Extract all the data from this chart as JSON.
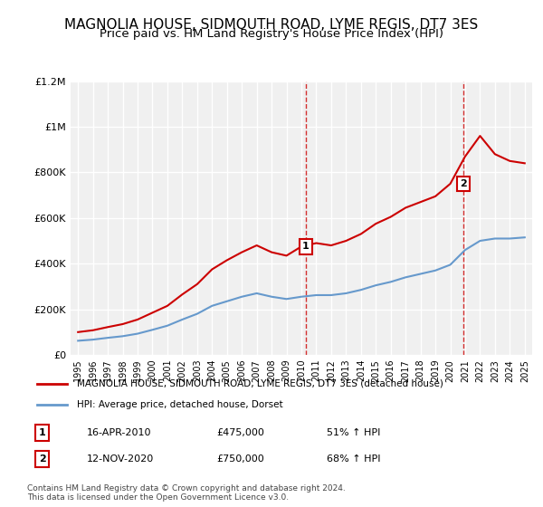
{
  "title": "MAGNOLIA HOUSE, SIDMOUTH ROAD, LYME REGIS, DT7 3ES",
  "subtitle": "Price paid vs. HM Land Registry's House Price Index (HPI)",
  "title_fontsize": 11,
  "subtitle_fontsize": 9.5,
  "hpi_years": [
    1995,
    1996,
    1997,
    1998,
    1999,
    2000,
    2001,
    2002,
    2003,
    2004,
    2005,
    2006,
    2007,
    2008,
    2009,
    2010,
    2011,
    2012,
    2013,
    2014,
    2015,
    2016,
    2017,
    2018,
    2019,
    2020,
    2021,
    2022,
    2023,
    2024,
    2025
  ],
  "hpi_values": [
    62000,
    67000,
    75000,
    82000,
    93000,
    110000,
    128000,
    155000,
    180000,
    215000,
    235000,
    255000,
    270000,
    255000,
    245000,
    255000,
    262000,
    262000,
    270000,
    285000,
    305000,
    320000,
    340000,
    355000,
    370000,
    395000,
    460000,
    500000,
    510000,
    510000,
    515000
  ],
  "house_years": [
    1995,
    1996,
    1997,
    1998,
    1999,
    2000,
    2001,
    2002,
    2003,
    2004,
    2005,
    2006,
    2007,
    2008,
    2009,
    2010,
    2011,
    2012,
    2013,
    2014,
    2015,
    2016,
    2017,
    2018,
    2019,
    2020,
    2021,
    2022,
    2023,
    2024,
    2025
  ],
  "house_values": [
    100000,
    108000,
    122000,
    135000,
    155000,
    185000,
    215000,
    265000,
    310000,
    375000,
    415000,
    450000,
    480000,
    450000,
    435000,
    475000,
    490000,
    480000,
    500000,
    530000,
    575000,
    605000,
    645000,
    670000,
    695000,
    750000,
    870000,
    960000,
    880000,
    850000,
    840000
  ],
  "sale1_year": 2010.29,
  "sale1_price": 475000,
  "sale1_label": "1",
  "sale1_date": "16-APR-2010",
  "sale1_hpi_pct": "51%",
  "sale2_year": 2020.87,
  "sale2_price": 750000,
  "sale2_label": "2",
  "sale2_date": "12-NOV-2020",
  "sale2_hpi_pct": "68%",
  "house_color": "#cc0000",
  "hpi_color": "#6699cc",
  "vline_color": "#cc0000",
  "xlim": [
    1994.5,
    2025.5
  ],
  "ylim": [
    0,
    1200000
  ],
  "yticks": [
    0,
    200000,
    400000,
    600000,
    800000,
    1000000,
    1200000
  ],
  "ytick_labels": [
    "£0",
    "£200K",
    "£400K",
    "£600K",
    "£800K",
    "£1M",
    "£1.2M"
  ],
  "xticks": [
    1995,
    1996,
    1997,
    1998,
    1999,
    2000,
    2001,
    2002,
    2003,
    2004,
    2005,
    2006,
    2007,
    2008,
    2009,
    2010,
    2011,
    2012,
    2013,
    2014,
    2015,
    2016,
    2017,
    2018,
    2019,
    2020,
    2021,
    2022,
    2023,
    2024,
    2025
  ],
  "legend_house": "MAGNOLIA HOUSE, SIDMOUTH ROAD, LYME REGIS, DT7 3ES (detached house)",
  "legend_hpi": "HPI: Average price, detached house, Dorset",
  "footnote": "Contains HM Land Registry data © Crown copyright and database right 2024.\nThis data is licensed under the Open Government Licence v3.0.",
  "bg_color": "#ffffff",
  "plot_bg_color": "#f0f0f0",
  "grid_color": "#ffffff"
}
